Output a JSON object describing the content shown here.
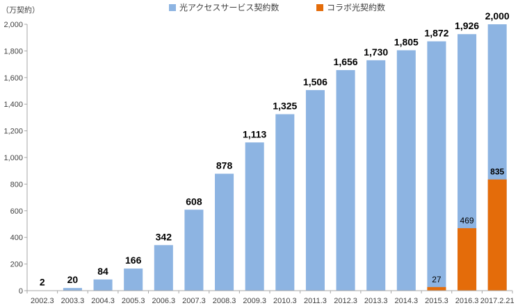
{
  "chart_data": {
    "type": "bar",
    "unit_label": "（万契約）",
    "categories": [
      "2002.3",
      "2003.3",
      "2004.3",
      "2005.3",
      "2006.3",
      "2007.3",
      "2008.3",
      "2009.3",
      "2010.3",
      "2011.3",
      "2012.3",
      "2013.3",
      "2014.3",
      "2015.3",
      "2016.3",
      "2017.2.21"
    ],
    "series": [
      {
        "name": "光アクセスサービス契約数",
        "color": "#8db4e2",
        "values": [
          2,
          20,
          84,
          166,
          342,
          608,
          878,
          1113,
          1325,
          1506,
          1656,
          1730,
          1805,
          1872,
          1926,
          2000
        ],
        "labels": [
          "2",
          "20",
          "84",
          "166",
          "342",
          "608",
          "878",
          "1,113",
          "1,325",
          "1,506",
          "1,656",
          "1,730",
          "1,805",
          "1,872",
          "1,926",
          "2,000"
        ]
      },
      {
        "name": "コラボ光契約数",
        "color": "#e46c0a",
        "values": [
          null,
          null,
          null,
          null,
          null,
          null,
          null,
          null,
          null,
          null,
          null,
          null,
          null,
          27,
          469,
          835
        ],
        "labels": [
          "",
          "",
          "",
          "",
          "",
          "",
          "",
          "",
          "",
          "",
          "",
          "",
          "",
          "27",
          "469",
          "835"
        ]
      }
    ],
    "highlight_color": "#ff0000",
    "ylim": [
      0,
      2000
    ],
    "yticks": [
      0,
      200,
      400,
      600,
      800,
      1000,
      1200,
      1400,
      1600,
      1800,
      2000
    ],
    "ytick_labels": [
      "0",
      "200",
      "400",
      "600",
      "800",
      "1,000",
      "1,200",
      "1,400",
      "1,600",
      "1,800",
      "2,000"
    ],
    "grid": false,
    "legend_position": "top-center",
    "title": "",
    "xlabel": "",
    "ylabel": ""
  }
}
